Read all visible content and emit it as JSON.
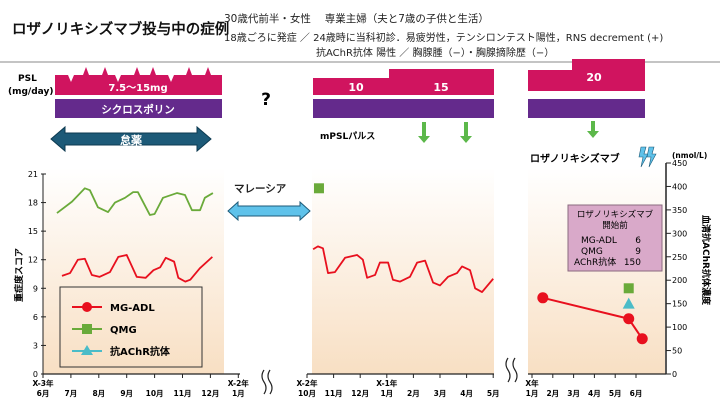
{
  "header": {
    "title": "ロザノリキシズマブ投与中の症例",
    "line1": "30歳代前半・女性　 専業主婦（夫と7歳の子供と生活）",
    "line2": "18歳ごろに発症 ／ 24歳時に当科初診．易疲労性，テンシロンテスト陽性，RNS decrement (+)",
    "line3": "抗AChR抗体 陽性 ／ 胸腺腫（−）・胸腺摘除歴（−）"
  },
  "treatment": {
    "psl_label": "PSL",
    "psl_unit": "(mg/day)",
    "psl_left": "7.5〜15mg",
    "psl_mid_a": "10",
    "psl_mid_b": "15",
    "psl_right": "20",
    "cyclosporine": "シクロスポリン",
    "unknown": "?",
    "nonadherence": "怠薬",
    "malaysia": "マレーシア",
    "mpsl_pulse": "mPSLパルス",
    "rozanolixizumab": "ロザノリキシズマブ"
  },
  "colors": {
    "psl": "#d0145f",
    "cyclosporine": "#642a8c",
    "nonadherence_arrow": "#1d5a78",
    "malaysia_arrow": "#5fc2ea",
    "pulse_arrow": "#5cb84a",
    "mgadl": "#e8101e",
    "qmg": "#6aaa3a",
    "achr": "#4bbcc8",
    "panel_bottom": "#f8dfc3",
    "info_box": "#d9a9c9"
  },
  "chart_data": {
    "type": "line",
    "ylabel": "重症度スコア",
    "ylim": [
      0,
      21
    ],
    "yticks": [
      "0",
      "3",
      "6",
      "9",
      "12",
      "15",
      "18",
      "21"
    ],
    "y2label": "血清抗AChR抗体濃度",
    "y2unit": "(nmol/L)",
    "y2lim": [
      0,
      450
    ],
    "y2ticks": [
      "0",
      "50",
      "100",
      "150",
      "200",
      "250",
      "300",
      "350",
      "400",
      "450"
    ],
    "legend": [
      {
        "name": "MG-ADL",
        "marker": "circle"
      },
      {
        "name": "QMG",
        "marker": "square"
      },
      {
        "name": "抗AChR抗体",
        "marker": "triangle"
      }
    ],
    "legend_position": "bottom-left",
    "panels": [
      {
        "ticks": [
          [
            "X-3年",
            "6月"
          ],
          [
            "",
            "7月"
          ],
          [
            "",
            "8月"
          ],
          [
            "",
            "9月"
          ],
          [
            "",
            "10月"
          ],
          [
            "",
            "11月"
          ],
          [
            "",
            "12月"
          ],
          [
            "X-2年",
            "1月"
          ]
        ],
        "series": [
          {
            "name": "MG-ADL",
            "points": [
              [
                0.68,
                10.3
              ],
              [
                0.97,
                10.6
              ],
              [
                1.25,
                12.0
              ],
              [
                1.5,
                12.1
              ],
              [
                1.75,
                10.4
              ],
              [
                2.03,
                10.2
              ],
              [
                2.4,
                10.7
              ],
              [
                2.7,
                12.3
              ],
              [
                3.0,
                12.5
              ],
              [
                3.36,
                10.2
              ],
              [
                3.68,
                10.1
              ],
              [
                3.96,
                10.9
              ],
              [
                4.2,
                11.2
              ],
              [
                4.4,
                12.2
              ],
              [
                4.7,
                11.8
              ],
              [
                4.85,
                10.1
              ],
              [
                5.1,
                9.7
              ],
              [
                5.28,
                9.9
              ],
              [
                5.62,
                11.1
              ],
              [
                6.07,
                12.3
              ]
            ]
          },
          {
            "name": "QMG",
            "points": [
              [
                0.5,
                16.9
              ],
              [
                1.04,
                18.1
              ],
              [
                1.5,
                19.5
              ],
              [
                1.68,
                19.3
              ],
              [
                1.97,
                17.5
              ],
              [
                2.33,
                17.0
              ],
              [
                2.58,
                18.0
              ],
              [
                2.94,
                18.5
              ],
              [
                3.23,
                19.1
              ],
              [
                3.4,
                19.1
              ],
              [
                3.83,
                16.7
              ],
              [
                4.0,
                16.8
              ],
              [
                4.3,
                18.5
              ],
              [
                4.8,
                19.0
              ],
              [
                5.09,
                18.8
              ],
              [
                5.34,
                17.2
              ],
              [
                5.63,
                17.2
              ],
              [
                5.8,
                18.5
              ],
              [
                6.09,
                19.0
              ]
            ]
          }
        ]
      },
      {
        "ticks": [
          [
            "X-2年",
            "10月"
          ],
          [
            "",
            "11月"
          ],
          [
            "",
            "12月"
          ],
          [
            "X-1年",
            "1月"
          ],
          [
            "",
            "2月"
          ],
          [
            "",
            "3月"
          ],
          [
            "",
            "4月"
          ],
          [
            "",
            "5月"
          ]
        ],
        "series": [
          {
            "name": "MG-ADL",
            "points": [
              [
                0.23,
                13.1
              ],
              [
                0.41,
                13.4
              ],
              [
                0.6,
                13.2
              ],
              [
                0.79,
                10.6
              ],
              [
                1.05,
                10.7
              ],
              [
                1.43,
                12.2
              ],
              [
                1.88,
                12.5
              ],
              [
                2.1,
                12.0
              ],
              [
                2.26,
                10.1
              ],
              [
                2.56,
                10.4
              ],
              [
                2.74,
                11.7
              ],
              [
                3.05,
                11.7
              ],
              [
                3.23,
                9.9
              ],
              [
                3.5,
                9.7
              ],
              [
                3.87,
                10.2
              ],
              [
                4.14,
                11.7
              ],
              [
                4.44,
                11.9
              ],
              [
                4.74,
                9.6
              ],
              [
                5.0,
                9.3
              ],
              [
                5.3,
                10.2
              ],
              [
                5.64,
                10.6
              ],
              [
                5.83,
                11.3
              ],
              [
                6.13,
                10.9
              ],
              [
                6.32,
                9.0
              ],
              [
                6.58,
                8.6
              ],
              [
                7.0,
                10.0
              ]
            ]
          },
          {
            "name": "QMG",
            "points": [
              [
                0.45,
                19.5
              ]
            ]
          }
        ]
      },
      {
        "ticks": [
          [
            "X年",
            "1月"
          ],
          [
            "",
            "2月"
          ],
          [
            "",
            "3月"
          ],
          [
            "",
            "4月"
          ],
          [
            "",
            "5月"
          ],
          [
            "",
            "6月"
          ]
        ],
        "series": [
          {
            "name": "MG-ADL",
            "points": [
              [
                0.52,
                8.0
              ],
              [
                4.65,
                5.8
              ],
              [
                5.3,
                3.7
              ]
            ]
          },
          {
            "name": "QMG",
            "points": [
              [
                4.65,
                9
              ]
            ]
          },
          {
            "name": "抗AChR抗体",
            "axis": "right",
            "points": [
              [
                4.65,
                150
              ]
            ]
          }
        ]
      }
    ],
    "info_box": {
      "title1": "ロザノリキシズマブ",
      "title2": "開始前",
      "rows": [
        {
          "label": "MG-ADL",
          "value": "6"
        },
        {
          "label": "QMG",
          "value": "9"
        },
        {
          "label": "AChR抗体",
          "value": "150"
        }
      ]
    }
  }
}
